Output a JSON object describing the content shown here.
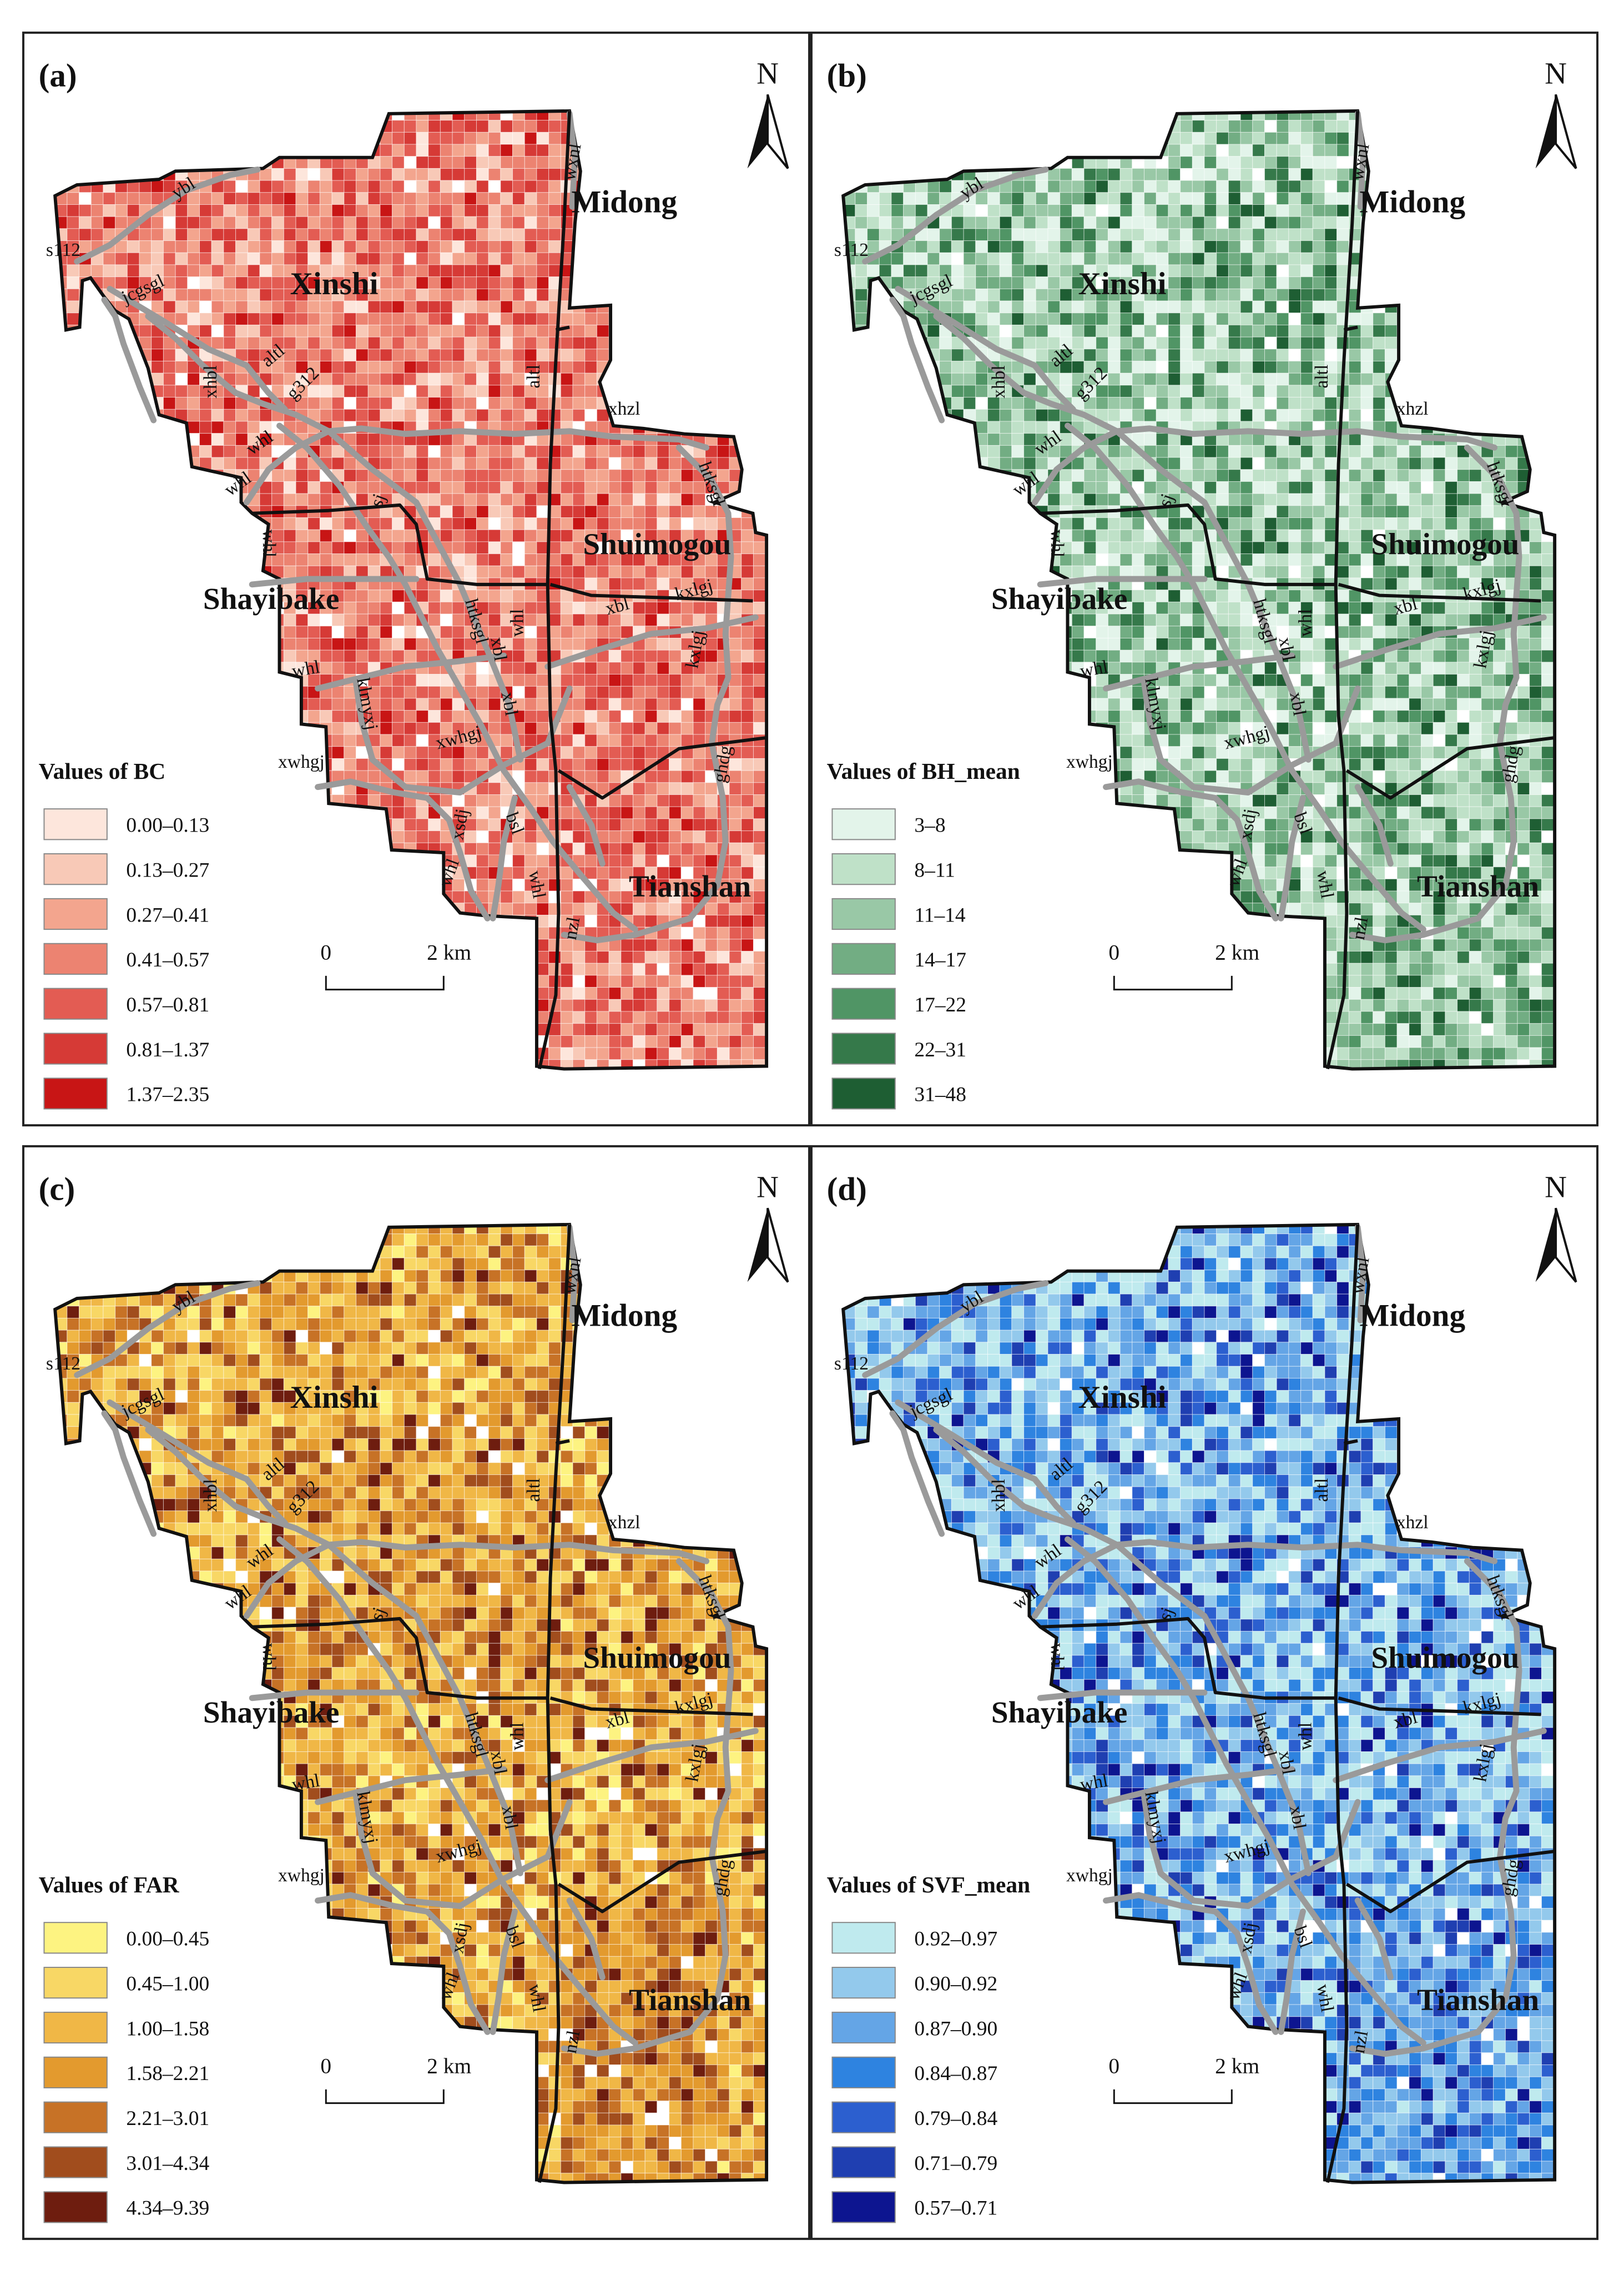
{
  "panels": [
    {
      "id": "a",
      "label": "(a)",
      "north": "N",
      "legend_title": "Values of BC",
      "legend_items": [
        "0.00–0.13",
        "0.13–0.27",
        "0.27–0.41",
        "0.41–0.57",
        "0.57–0.81",
        "0.81–1.37",
        "1.37–2.35"
      ],
      "colors": [
        "#fde6dc",
        "#f8c9b7",
        "#f3a58e",
        "#ec8371",
        "#e35c53",
        "#d63a36",
        "#c81515"
      ],
      "weights": [
        1,
        2,
        4,
        5,
        5,
        3,
        1
      ],
      "scale_start": "0",
      "scale_end": "2 km"
    },
    {
      "id": "b",
      "label": "(b)",
      "north": "N",
      "legend_title": "Values of BH_mean",
      "legend_items": [
        "3–8",
        "8–11",
        "11–14",
        "14–17",
        "17–22",
        "22–31",
        "31–48"
      ],
      "colors": [
        "#e3f4ea",
        "#bfe1c8",
        "#99c8a6",
        "#72ad83",
        "#509565",
        "#35794a",
        "#1e5e33"
      ],
      "weights": [
        5,
        5,
        4,
        3,
        2,
        2,
        1
      ],
      "scale_start": "0",
      "scale_end": "2 km"
    },
    {
      "id": "c",
      "label": "(c)",
      "north": "N",
      "legend_title": "Values of FAR",
      "legend_items": [
        "0.00–0.45",
        "0.45–1.00",
        "1.00–1.58",
        "1.58–2.21",
        "2.21–3.01",
        "3.01–4.34",
        "4.34–9.39"
      ],
      "colors": [
        "#fdf381",
        "#f8d765",
        "#f0b746",
        "#e39a2e",
        "#c77226",
        "#a14d1d",
        "#6e1d0f"
      ],
      "weights": [
        2,
        4,
        5,
        4,
        3,
        2,
        1
      ],
      "scale_start": "0",
      "scale_end": "2 km"
    },
    {
      "id": "d",
      "label": "(d)",
      "north": "N",
      "legend_title": "Values of SVF_mean",
      "legend_items": [
        "0.92–0.97",
        "0.90–0.92",
        "0.87–0.90",
        "0.84–0.87",
        "0.79–0.84",
        "0.71–0.79",
        "0.57–0.71"
      ],
      "colors": [
        "#bfeaee",
        "#93c9ec",
        "#64a5e6",
        "#2e83e0",
        "#2c5fcf",
        "#1f3fb1",
        "#0d1590"
      ],
      "weights": [
        5,
        4,
        4,
        3,
        2,
        1,
        1
      ],
      "scale_start": "0",
      "scale_end": "2 km"
    }
  ],
  "districts": [
    "Xinshi",
    "Midong",
    "Shuimogou",
    "Shayibake",
    "Tianshan"
  ],
  "roads": [
    "ybl",
    "s112",
    "jcgsgl",
    "xhbl",
    "altl",
    "g312",
    "whl",
    "whl",
    "sj",
    "whl",
    "altl",
    "xhzl",
    "htksgl",
    "whl",
    "htksgl",
    "xbl",
    "xbl",
    "xbl",
    "kxlgj",
    "kxlgj",
    "whl",
    "klmyxj",
    "xwhgj",
    "xwhgj",
    "xsdj",
    "bsl",
    "whl",
    "whl",
    "nzl",
    "ghdg",
    "wxnl",
    "mdnl"
  ]
}
